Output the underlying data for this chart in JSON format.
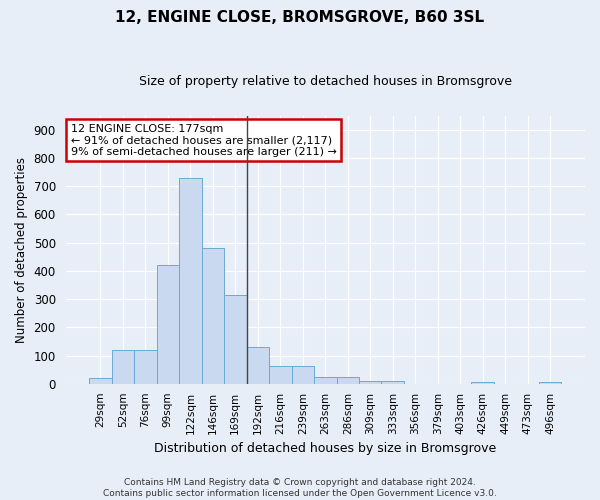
{
  "title": "12, ENGINE CLOSE, BROMSGROVE, B60 3SL",
  "subtitle": "Size of property relative to detached houses in Bromsgrove",
  "xlabel": "Distribution of detached houses by size in Bromsgrove",
  "ylabel": "Number of detached properties",
  "bar_color": "#c9d9f0",
  "bar_edge_color": "#6aaad4",
  "background_color": "#e8eef8",
  "grid_color": "#ffffff",
  "categories": [
    "29sqm",
    "52sqm",
    "76sqm",
    "99sqm",
    "122sqm",
    "146sqm",
    "169sqm",
    "192sqm",
    "216sqm",
    "239sqm",
    "263sqm",
    "286sqm",
    "309sqm",
    "333sqm",
    "356sqm",
    "379sqm",
    "403sqm",
    "426sqm",
    "449sqm",
    "473sqm",
    "496sqm"
  ],
  "values": [
    20,
    120,
    120,
    420,
    730,
    480,
    315,
    130,
    65,
    65,
    25,
    25,
    10,
    10,
    0,
    0,
    0,
    8,
    0,
    0,
    8
  ],
  "vline_color": "#444444",
  "annotation_text": "12 ENGINE CLOSE: 177sqm\n← 91% of detached houses are smaller (2,117)\n9% of semi-detached houses are larger (211) →",
  "annotation_box_color": "#ffffff",
  "annotation_box_edge_color": "#cc0000",
  "ylim": [
    0,
    950
  ],
  "yticks": [
    0,
    100,
    200,
    300,
    400,
    500,
    600,
    700,
    800,
    900
  ],
  "footer_line1": "Contains HM Land Registry data © Crown copyright and database right 2024.",
  "footer_line2": "Contains public sector information licensed under the Open Government Licence v3.0."
}
